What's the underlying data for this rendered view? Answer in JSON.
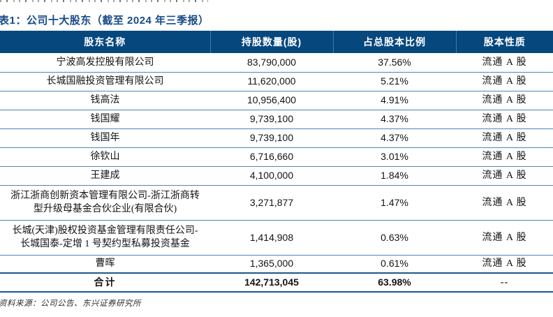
{
  "title": "表1：公司十大股东（截至 2024 年三季报）",
  "table": {
    "headers": [
      "股东名称",
      "持股数量(股)",
      "占总股本比例",
      "股本性质"
    ],
    "rows": [
      {
        "name": "宁波高发控股有限公司",
        "shares": "83,790,000",
        "ratio": "37.56%",
        "nature": "流通 A 股"
      },
      {
        "name": "长城国融投资管理有限公司",
        "shares": "11,620,000",
        "ratio": "5.21%",
        "nature": "流通 A 股"
      },
      {
        "name": "钱高法",
        "shares": "10,956,400",
        "ratio": "4.91%",
        "nature": "流通 A 股"
      },
      {
        "name": "钱国耀",
        "shares": "9,739,100",
        "ratio": "4.37%",
        "nature": "流通 A 股"
      },
      {
        "name": "钱国年",
        "shares": "9,739,100",
        "ratio": "4.37%",
        "nature": "流通 A 股"
      },
      {
        "name": "徐钦山",
        "shares": "6,716,660",
        "ratio": "3.01%",
        "nature": "流通 A 股"
      },
      {
        "name": "王建成",
        "shares": "4,100,000",
        "ratio": "1.84%",
        "nature": "流通 A 股"
      },
      {
        "name": "浙江浙商创新资本管理有限公司-浙江浙商转\n型升级母基金合伙企业(有限合伙)",
        "shares": "3,271,877",
        "ratio": "1.47%",
        "nature": "流通 A 股"
      },
      {
        "name": "长城(天津)股权投资基金管理有限责任公司-\n长城国泰-定增 1 号契约型私募投资基金",
        "shares": "1,414,908",
        "ratio": "0.63%",
        "nature": "流通 A 股"
      },
      {
        "name": "曹晖",
        "shares": "1,365,000",
        "ratio": "0.61%",
        "nature": "流通 A 股"
      }
    ],
    "total_row": {
      "name": "合计",
      "shares": "142,713,045",
      "ratio": "63.98%",
      "nature": "--"
    }
  },
  "footer": {
    "source_note": "资料来源：公司公告、东兴证券研究所"
  },
  "colors": {
    "header_bg": "#06477D",
    "title_text": "#164A85",
    "row_divider": "#4E86B8",
    "strong_divider": "#18598F"
  }
}
